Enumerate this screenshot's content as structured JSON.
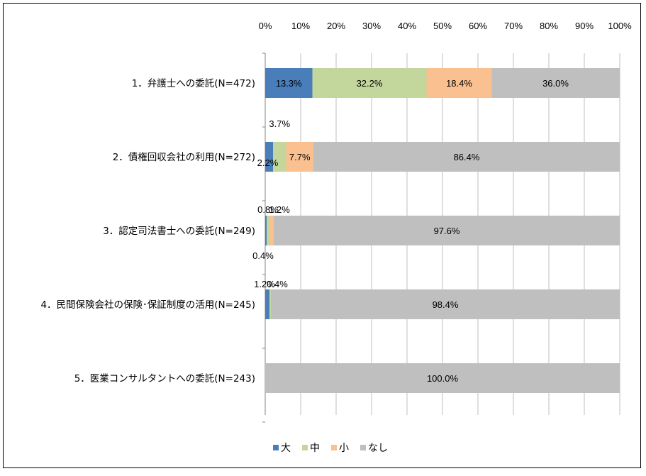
{
  "chart_data": {
    "type": "bar",
    "orientation": "horizontal",
    "stacked": "percent",
    "title": "",
    "xlabel": "",
    "ylabel": "",
    "xlim": [
      0,
      100
    ],
    "x_ticks": [
      "0%",
      "10%",
      "20%",
      "30%",
      "40%",
      "50%",
      "60%",
      "70%",
      "80%",
      "90%",
      "100%"
    ],
    "grid": true,
    "legend_position": "bottom",
    "categories": [
      "1．弁護士への委託(N=472)",
      "2．債権回収会社の利用(N=272)",
      "3．認定司法書士への委託(N=249)",
      "4．民間保険会社の保険･保証制度の活用(N=245)",
      "5．医業コンサルタントへの委託(N=243)"
    ],
    "series": [
      {
        "name": "大",
        "color": "#4a7ebb",
        "values": [
          13.3,
          2.2,
          0.4,
          1.2,
          0.0
        ],
        "labels": [
          "13.3%",
          "2.2%",
          "0.4%",
          "1.2%",
          ""
        ]
      },
      {
        "name": "中",
        "color": "#c3d69b",
        "values": [
          32.2,
          3.7,
          0.8,
          0.4,
          0.0
        ],
        "labels": [
          "32.2%",
          "3.7%",
          "0.8%",
          "0.4%",
          ""
        ]
      },
      {
        "name": "小",
        "color": "#fac090",
        "values": [
          18.4,
          7.7,
          1.2,
          0.0,
          0.0
        ],
        "labels": [
          "18.4%",
          "7.7%",
          "1.2%",
          "",
          ""
        ]
      },
      {
        "name": "なし",
        "color": "#bfbfbf",
        "values": [
          36.0,
          86.4,
          97.6,
          98.4,
          100.0
        ],
        "labels": [
          "36.0%",
          "86.4%",
          "97.6%",
          "98.4%",
          "100.0%"
        ]
      }
    ]
  }
}
